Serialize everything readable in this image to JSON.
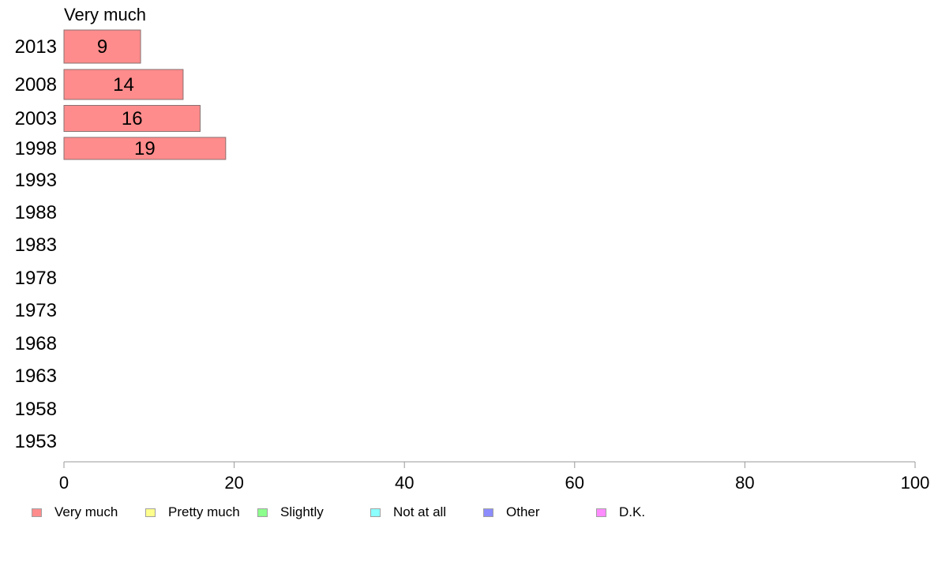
{
  "chart_data": {
    "type": "bar",
    "orientation": "horizontal",
    "title": "Very much",
    "categories": [
      "2013",
      "2008",
      "2003",
      "1998",
      "1993",
      "1988",
      "1983",
      "1978",
      "1973",
      "1968",
      "1963",
      "1958",
      "1953"
    ],
    "series": [
      {
        "name": "Very much",
        "values": [
          9,
          14,
          16,
          19,
          null,
          null,
          null,
          null,
          null,
          null,
          null,
          null,
          null
        ]
      }
    ],
    "data_labels": [
      "9",
      "14",
      "16",
      "19"
    ],
    "xlim": [
      0,
      100
    ],
    "xticks": [
      0,
      20,
      40,
      60,
      80,
      100
    ],
    "grid": false,
    "legend_position": "bottom"
  },
  "legend": {
    "items": [
      {
        "label": "Very much",
        "color": "#ff8c8c"
      },
      {
        "label": "Pretty much",
        "color": "#ffff8c"
      },
      {
        "label": "Slightly",
        "color": "#8cff8c"
      },
      {
        "label": "Not at all",
        "color": "#8cffff"
      },
      {
        "label": "Other",
        "color": "#8c8cff"
      },
      {
        "label": "D.K.",
        "color": "#ff8cff"
      }
    ]
  }
}
